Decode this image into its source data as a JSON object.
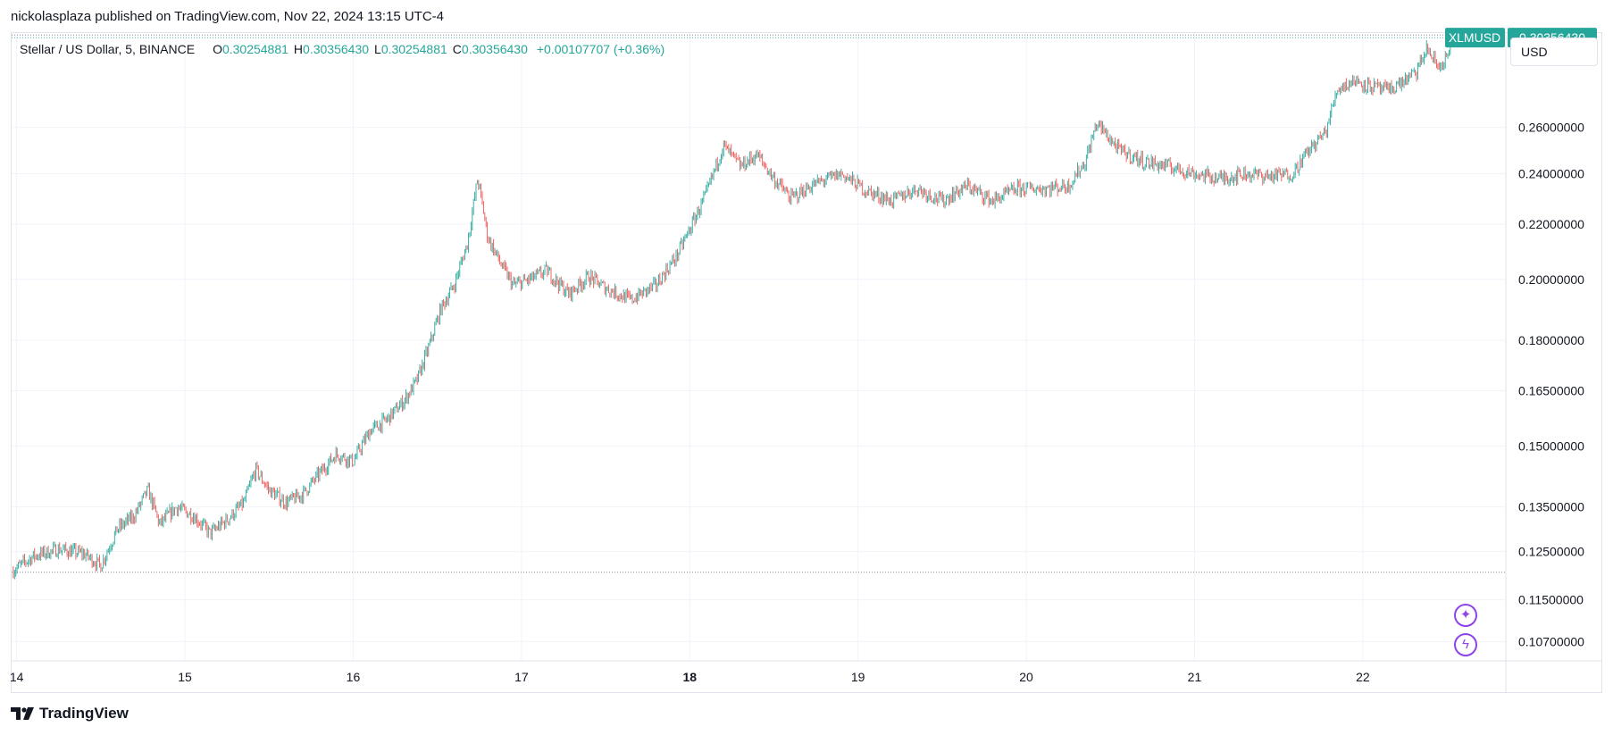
{
  "header": {
    "published_line": "nickolasplaza published on TradingView.com, Nov 22, 2024 13:15 UTC-4"
  },
  "legend": {
    "symbol": "Stellar / US Dollar, 5, BINANCE",
    "open_label": "O",
    "open": "0.30254881",
    "high_label": "H",
    "high": "0.30356430",
    "low_label": "L",
    "low": "0.30254881",
    "close_label": "C",
    "close": "0.30356430",
    "change": "+0.00107707 (+0.36%)"
  },
  "currency": "USD",
  "footer": {
    "brand": "TradingView"
  },
  "colors": {
    "up": "#26a69a",
    "down": "#ef5350",
    "grid": "#f0f3fa",
    "label_bg": "#26a69a",
    "icon": "#8e44e8"
  },
  "icons": [
    "sparkle-icon",
    "lightning-icon",
    "tradingview-logo-icon"
  ],
  "chart_data": {
    "type": "candlestick",
    "scale": "log",
    "ticker_label": "XLMUSD",
    "last_price_label": "0.30356430",
    "last_price": 0.3035643,
    "y_ticks": [
      0.26,
      0.24,
      0.22,
      0.2,
      0.18,
      0.165,
      0.15,
      0.135,
      0.125,
      0.115,
      0.107
    ],
    "y_tick_labels": [
      "0.26000000",
      "0.24000000",
      "0.22000000",
      "0.20000000",
      "0.18000000",
      "0.16500000",
      "0.15000000",
      "0.13500000",
      "0.12500000",
      "0.11500000",
      "0.10700000"
    ],
    "x_ticks": [
      "14",
      "15",
      "16",
      "17",
      "18",
      "19",
      "20",
      "21",
      "22"
    ],
    "x_bold_tick": "18",
    "ylim": [
      0.1035,
      0.306
    ],
    "xlim": [
      13.97,
      22.85
    ],
    "grid": true,
    "price_path": [
      [
        13.98,
        0.121
      ],
      [
        14.1,
        0.124
      ],
      [
        14.25,
        0.1255
      ],
      [
        14.4,
        0.1245
      ],
      [
        14.5,
        0.122
      ],
      [
        14.6,
        0.13
      ],
      [
        14.7,
        0.133
      ],
      [
        14.78,
        0.139
      ],
      [
        14.85,
        0.131
      ],
      [
        14.95,
        0.135
      ],
      [
        15.05,
        0.133
      ],
      [
        15.15,
        0.129
      ],
      [
        15.25,
        0.132
      ],
      [
        15.35,
        0.136
      ],
      [
        15.42,
        0.144
      ],
      [
        15.5,
        0.139
      ],
      [
        15.6,
        0.136
      ],
      [
        15.7,
        0.138
      ],
      [
        15.8,
        0.143
      ],
      [
        15.9,
        0.148
      ],
      [
        16.0,
        0.146
      ],
      [
        16.1,
        0.154
      ],
      [
        16.2,
        0.157
      ],
      [
        16.3,
        0.162
      ],
      [
        16.38,
        0.168
      ],
      [
        16.45,
        0.178
      ],
      [
        16.52,
        0.19
      ],
      [
        16.6,
        0.198
      ],
      [
        16.68,
        0.213
      ],
      [
        16.74,
        0.238
      ],
      [
        16.8,
        0.215
      ],
      [
        16.88,
        0.205
      ],
      [
        16.95,
        0.198
      ],
      [
        17.05,
        0.2
      ],
      [
        17.15,
        0.203
      ],
      [
        17.28,
        0.195
      ],
      [
        17.4,
        0.201
      ],
      [
        17.5,
        0.197
      ],
      [
        17.65,
        0.193
      ],
      [
        17.8,
        0.198
      ],
      [
        17.92,
        0.208
      ],
      [
        18.0,
        0.218
      ],
      [
        18.1,
        0.232
      ],
      [
        18.2,
        0.252
      ],
      [
        18.3,
        0.243
      ],
      [
        18.4,
        0.248
      ],
      [
        18.5,
        0.238
      ],
      [
        18.6,
        0.23
      ],
      [
        18.75,
        0.236
      ],
      [
        18.9,
        0.24
      ],
      [
        19.05,
        0.233
      ],
      [
        19.2,
        0.229
      ],
      [
        19.35,
        0.234
      ],
      [
        19.5,
        0.229
      ],
      [
        19.65,
        0.235
      ],
      [
        19.8,
        0.229
      ],
      [
        19.95,
        0.234
      ],
      [
        20.1,
        0.234
      ],
      [
        20.25,
        0.235
      ],
      [
        20.35,
        0.245
      ],
      [
        20.42,
        0.262
      ],
      [
        20.55,
        0.25
      ],
      [
        20.7,
        0.245
      ],
      [
        20.85,
        0.243
      ],
      [
        21.0,
        0.24
      ],
      [
        21.15,
        0.238
      ],
      [
        21.3,
        0.24
      ],
      [
        21.45,
        0.239
      ],
      [
        21.58,
        0.24
      ],
      [
        21.68,
        0.25
      ],
      [
        21.78,
        0.258
      ],
      [
        21.85,
        0.278
      ],
      [
        21.95,
        0.282
      ],
      [
        22.05,
        0.279
      ],
      [
        22.15,
        0.277
      ],
      [
        22.25,
        0.282
      ],
      [
        22.32,
        0.286
      ],
      [
        22.38,
        0.298
      ],
      [
        22.45,
        0.288
      ],
      [
        22.52,
        0.296
      ]
    ]
  }
}
